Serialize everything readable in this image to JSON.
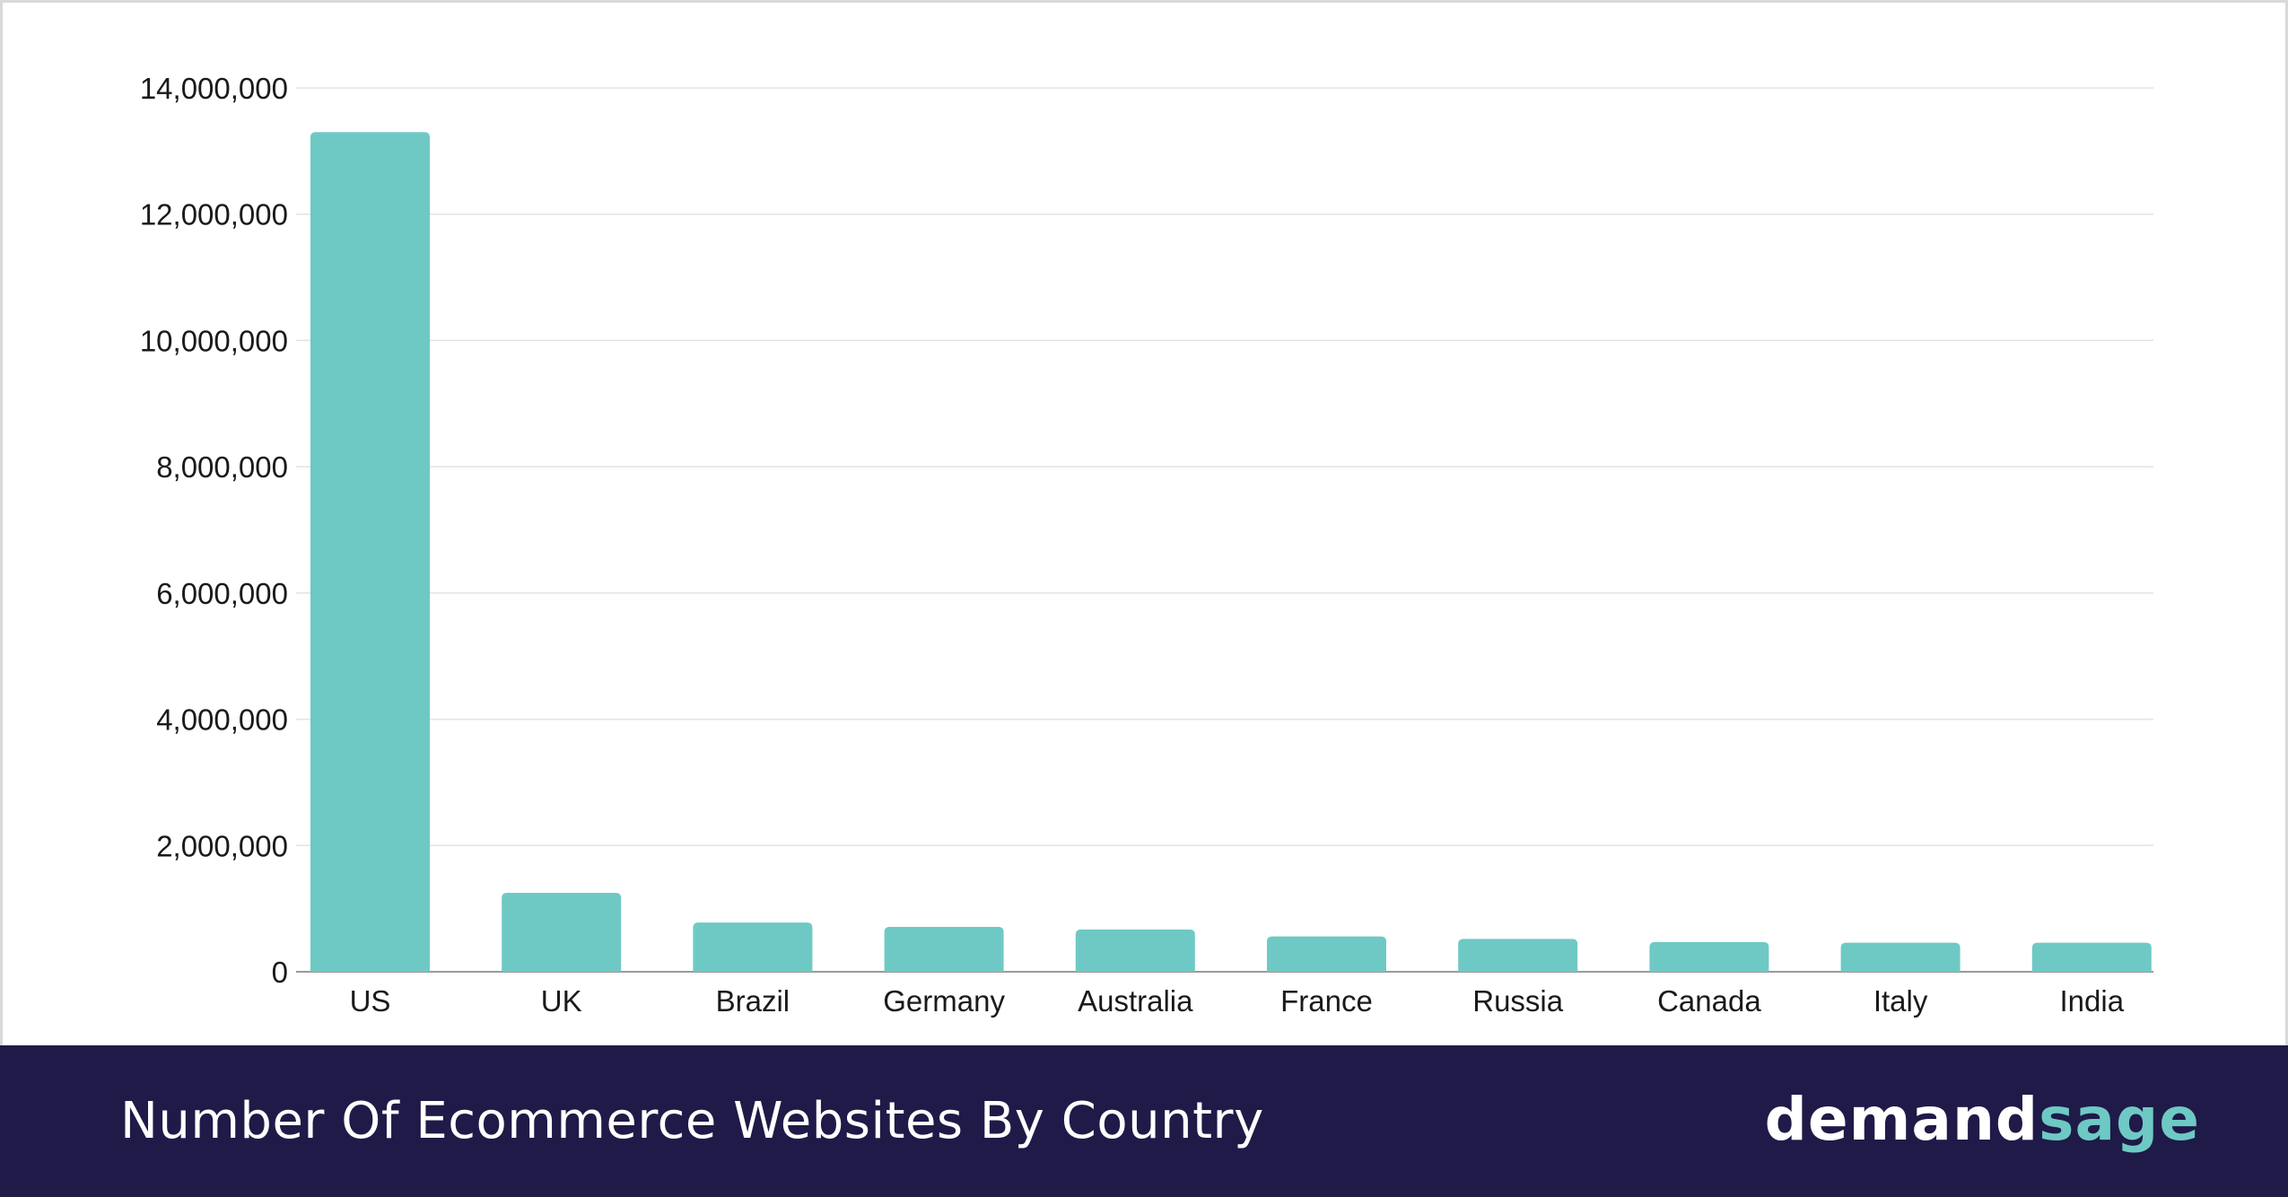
{
  "chart_data": {
    "type": "bar",
    "title": "Number Of Ecommerce Websites By Country",
    "categories": [
      "US",
      "UK",
      "Brazil",
      "Germany",
      "Australia",
      "France",
      "Russia",
      "Canada",
      "Italy",
      "India"
    ],
    "values": [
      13300000,
      1250000,
      780000,
      710000,
      670000,
      560000,
      520000,
      470000,
      460000,
      460000
    ],
    "ylim": [
      0,
      14000000
    ],
    "yticks": [
      0,
      2000000,
      4000000,
      6000000,
      8000000,
      10000000,
      12000000,
      14000000
    ],
    "ytick_labels": [
      "0",
      "2,000,000",
      "4,000,000",
      "6,000,000",
      "8,000,000",
      "10,000,000",
      "12,000,000",
      "14,000,000"
    ],
    "xlabel": "",
    "ylabel": "",
    "grid": true,
    "bar_color": "#6ec9c4"
  },
  "footer": {
    "title": "Number Of Ecommerce Websites By Country",
    "brand_part1": "demand",
    "brand_part2": "sage"
  },
  "colors": {
    "footer_bg": "#1f1a48",
    "accent": "#6ec9c4"
  }
}
